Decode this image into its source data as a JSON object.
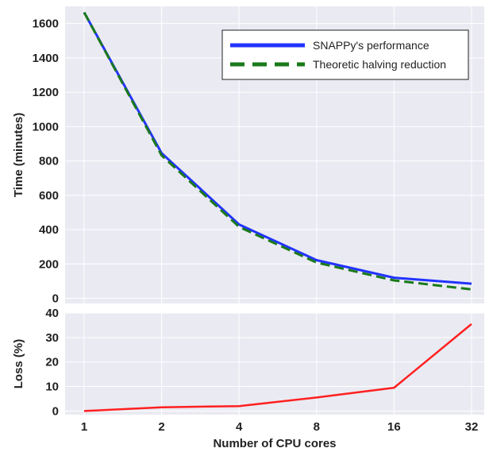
{
  "chart_data": [
    {
      "type": "line",
      "x": [
        1,
        2,
        4,
        8,
        16,
        32
      ],
      "x_tick_labels": [
        "1",
        "2",
        "4",
        "8",
        "16",
        "32"
      ],
      "x_scale": "log2",
      "ylabel": "Time (minutes)",
      "ylim": [
        -30,
        1700
      ],
      "y_ticks": [
        0,
        200,
        400,
        600,
        800,
        1000,
        1200,
        1400,
        1600
      ],
      "grid": true,
      "background": "#eaeaf2",
      "legend_position": "top-right",
      "series": [
        {
          "name": "SNAPPy's performance",
          "values": [
            1665,
            845,
            430,
            222,
            120,
            85
          ],
          "color": "#2233ff",
          "style": "solid"
        },
        {
          "name": "Theoretic halving reduction",
          "values": [
            1665,
            832,
            416,
            208,
            104,
            52
          ],
          "color": "#1a7a1a",
          "style": "dashed"
        }
      ]
    },
    {
      "type": "line",
      "x": [
        1,
        2,
        4,
        8,
        16,
        32
      ],
      "x_tick_labels": [
        "1",
        "2",
        "4",
        "8",
        "16",
        "32"
      ],
      "x_scale": "log2",
      "xlabel": "Number of CPU cores",
      "ylabel": "Loss (%)",
      "ylim": [
        -1.5,
        40
      ],
      "y_ticks": [
        0,
        10,
        20,
        30,
        40
      ],
      "grid": true,
      "background": "#eaeaf2",
      "series": [
        {
          "values": [
            0,
            1.5,
            2,
            5.5,
            9.5,
            35.5
          ],
          "color": "#ff2020",
          "style": "solid"
        }
      ]
    }
  ]
}
